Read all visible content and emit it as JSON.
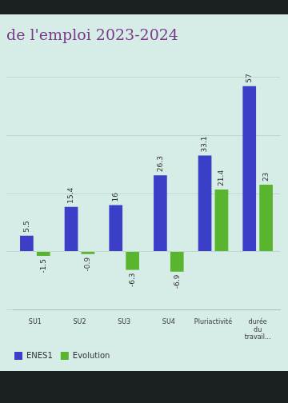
{
  "chart_data": {
    "type": "bar",
    "title": "de l'emploi 2023-2024",
    "categories": [
      "SU1",
      "SU2",
      "SU3",
      "SU4",
      "Pluriactivité",
      "durée du travail..."
    ],
    "series": [
      {
        "name": "ENES1",
        "color": "#3b3fc8",
        "values": [
          5.5,
          15.4,
          16,
          26.3,
          33.1,
          57
        ]
      },
      {
        "name": "Evolution",
        "color": "#5ab52e",
        "values": [
          -1.5,
          -0.9,
          -6.3,
          -6.9,
          21.4,
          23
        ]
      }
    ],
    "ylim": [
      -20,
      60
    ],
    "yticks": [
      -20,
      0,
      20,
      40,
      60
    ],
    "grid": true,
    "legend": "bottom",
    "data_labels": true,
    "tick_labels": "x"
  }
}
